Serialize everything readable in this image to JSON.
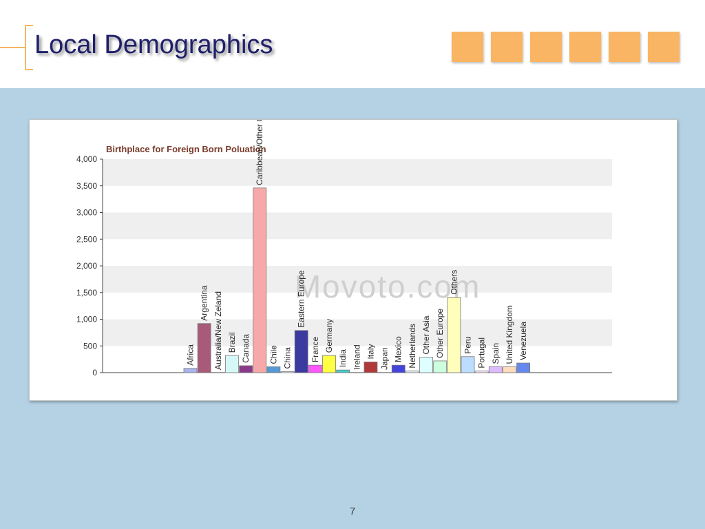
{
  "slide": {
    "title": "Local Demographics",
    "page_number": "7",
    "accent_color": "#f9b563",
    "background_color": "#b5d2e5",
    "title_color": "#1f1f6a"
  },
  "decor": {
    "square_count": 6
  },
  "watermark": "Movoto.com",
  "chart_data": {
    "type": "bar",
    "title": "Birthplace for Foreign Born Poluation",
    "xlabel": "",
    "ylabel": "",
    "ylim": [
      0,
      4000
    ],
    "yticks": [
      "0",
      "500",
      "1,000",
      "1,500",
      "2,000",
      "2,500",
      "3,000",
      "3,500",
      "4,000"
    ],
    "grid": "horizontal alternating bands",
    "legend": "none (labels on bars)",
    "categories": [
      "Africa",
      "Argentina",
      "Australia/New Zeland",
      "Brazil",
      "Canada",
      "Caribbean/Other Central America",
      "Chile",
      "China",
      "Eastern Europe",
      "France",
      "Germany",
      "India",
      "Ireland",
      "Italy",
      "Japan",
      "Mexico",
      "Netherlands",
      "Other Asia",
      "Other Europe",
      "Others",
      "Peru",
      "Portugal",
      "Spain",
      "United Kingdom",
      "Venezuela"
    ],
    "values": [
      80,
      920,
      0,
      320,
      130,
      3460,
      110,
      20,
      790,
      140,
      320,
      50,
      0,
      200,
      0,
      140,
      30,
      290,
      220,
      1410,
      300,
      30,
      110,
      110,
      180
    ],
    "colors": [
      "#aab3ee",
      "#a85a7a",
      "#ffffff",
      "#d6f7f7",
      "#8a3a8a",
      "#f7a8a8",
      "#5599d6",
      "#e8f0f0",
      "#3a3aa0",
      "#ff55ff",
      "#ffff44",
      "#44cccc",
      "#ffffff",
      "#b03a3a",
      "#ffffff",
      "#4444dd",
      "#ddeeee",
      "#ddffff",
      "#ccffdd",
      "#ffffbb",
      "#bbddff",
      "#f4e4f4",
      "#ddbbff",
      "#ffdcbb",
      "#6688ee"
    ]
  }
}
